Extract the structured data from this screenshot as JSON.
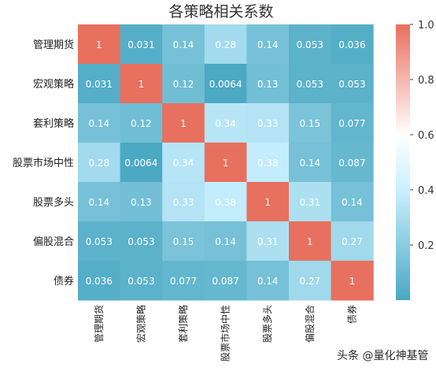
{
  "chart_data": {
    "type": "heatmap",
    "title": "各策略相关系数",
    "categories": [
      "管理期货",
      "宏观策略",
      "套利策略",
      "股票市场中性",
      "股票多头",
      "偏股混合",
      "债券"
    ],
    "matrix": [
      [
        1,
        0.031,
        0.14,
        0.28,
        0.14,
        0.053,
        0.036
      ],
      [
        0.031,
        1,
        0.12,
        0.0064,
        0.13,
        0.053,
        0.053
      ],
      [
        0.14,
        0.12,
        1,
        0.34,
        0.33,
        0.15,
        0.077
      ],
      [
        0.28,
        0.0064,
        0.34,
        1,
        0.38,
        0.14,
        0.087
      ],
      [
        0.14,
        0.13,
        0.33,
        0.38,
        1,
        0.31,
        0.14
      ],
      [
        0.053,
        0.053,
        0.15,
        0.14,
        0.31,
        1,
        0.27
      ],
      [
        0.036,
        0.053,
        0.077,
        0.087,
        0.14,
        0.27,
        1
      ]
    ],
    "labels": [
      [
        "1",
        "0.031",
        "0.14",
        "0.28",
        "0.14",
        "0.053",
        "0.036"
      ],
      [
        "0.031",
        "1",
        "0.12",
        "0.0064",
        "0.13",
        "0.053",
        "0.053"
      ],
      [
        "0.14",
        "0.12",
        "1",
        "0.34",
        "0.33",
        "0.15",
        "0.077"
      ],
      [
        "0.28",
        "0.0064",
        "0.34",
        "1",
        "0.38",
        "0.14",
        "0.087"
      ],
      [
        "0.14",
        "0.13",
        "0.33",
        "0.38",
        "1",
        "0.31",
        "0.14"
      ],
      [
        "0.053",
        "0.053",
        "0.15",
        "0.14",
        "0.31",
        "1",
        "0.27"
      ],
      [
        "0.036",
        "0.053",
        "0.077",
        "0.087",
        "0.14",
        "0.27",
        "1"
      ]
    ],
    "colorbar": {
      "range": [
        0,
        1
      ],
      "ticks": [
        0.2,
        0.4,
        0.6,
        0.8,
        1.0
      ],
      "tick_labels": [
        "0.2",
        "0.4",
        "0.6",
        "0.8",
        "1.0"
      ],
      "colors": {
        "low": "#4aa8c2",
        "mid_low": "#c9f0ff",
        "center": "#ffffff",
        "mid_high": "#f7c9c0",
        "high": "#e8705f"
      }
    },
    "legend": "right"
  },
  "watermark": "头条 @量化神基管"
}
